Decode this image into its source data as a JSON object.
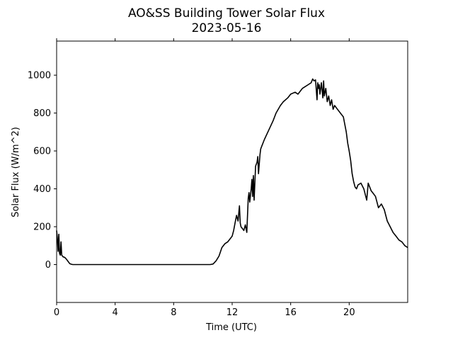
{
  "chart_data": {
    "type": "line",
    "title": "AO&SS Building Tower Solar Flux",
    "subtitle": "2023-05-16",
    "xlabel": "Time (UTC)",
    "ylabel": "Solar Flux (W/m^2)",
    "xlim": [
      0,
      24
    ],
    "ylim": [
      -200,
      1180
    ],
    "xticks": [
      0,
      4,
      8,
      12,
      16,
      20
    ],
    "yticks": [
      0,
      200,
      400,
      600,
      800,
      1000
    ],
    "grid": false,
    "line_color": "#000000",
    "series": [
      {
        "x": [
          0.0,
          0.05,
          0.1,
          0.15,
          0.2,
          0.25,
          0.3,
          0.35,
          0.4,
          0.45,
          0.5,
          0.6,
          0.7,
          0.8,
          0.9,
          1.0,
          1.1,
          1.2,
          1.4,
          2.0,
          4.0,
          6.0,
          8.0,
          10.0,
          10.5,
          10.7,
          10.9,
          11.1,
          11.3,
          11.5,
          11.7,
          11.9,
          12.0,
          12.1,
          12.2,
          12.3,
          12.4,
          12.5,
          12.55,
          12.6,
          12.7,
          12.8,
          12.9,
          13.0,
          13.05,
          13.1,
          13.15,
          13.2,
          13.3,
          13.35,
          13.4,
          13.45,
          13.5,
          13.6,
          13.7,
          13.75,
          13.8,
          13.9,
          13.95,
          14.0,
          14.2,
          14.5,
          14.8,
          15.0,
          15.3,
          15.5,
          15.8,
          16.0,
          16.3,
          16.5,
          16.8,
          17.0,
          17.2,
          17.4,
          17.5,
          17.6,
          17.7,
          17.8,
          17.85,
          17.9,
          17.95,
          18.0,
          18.1,
          18.2,
          18.25,
          18.3,
          18.4,
          18.5,
          18.6,
          18.7,
          18.8,
          18.9,
          19.0,
          19.2,
          19.4,
          19.6,
          19.8,
          19.9,
          20.0,
          20.1,
          20.2,
          20.3,
          20.4,
          20.5,
          20.6,
          20.8,
          21.0,
          21.2,
          21.3,
          21.4,
          21.5,
          21.6,
          21.7,
          21.8,
          22.0,
          22.2,
          22.4,
          22.6,
          22.8,
          23.0,
          23.2,
          23.4,
          23.6,
          23.8,
          24.0
        ],
        "y": [
          180,
          140,
          70,
          160,
          60,
          50,
          120,
          50,
          45,
          40,
          40,
          35,
          25,
          15,
          5,
          2,
          0,
          0,
          0,
          0,
          0,
          0,
          0,
          0,
          0,
          3,
          20,
          45,
          90,
          110,
          120,
          140,
          150,
          180,
          220,
          260,
          230,
          310,
          220,
          200,
          190,
          180,
          210,
          170,
          260,
          350,
          380,
          330,
          400,
          450,
          360,
          470,
          340,
          520,
          540,
          570,
          480,
          580,
          610,
          620,
          660,
          710,
          760,
          800,
          840,
          860,
          880,
          900,
          910,
          900,
          930,
          940,
          950,
          960,
          980,
          970,
          975,
          870,
          960,
          930,
          950,
          900,
          960,
          880,
          970,
          890,
          930,
          860,
          890,
          840,
          870,
          820,
          840,
          820,
          800,
          780,
          700,
          640,
          600,
          550,
          480,
          440,
          410,
          400,
          420,
          430,
          400,
          340,
          430,
          410,
          390,
          380,
          370,
          360,
          300,
          320,
          290,
          230,
          200,
          170,
          150,
          130,
          120,
          100,
          90
        ]
      }
    ]
  }
}
